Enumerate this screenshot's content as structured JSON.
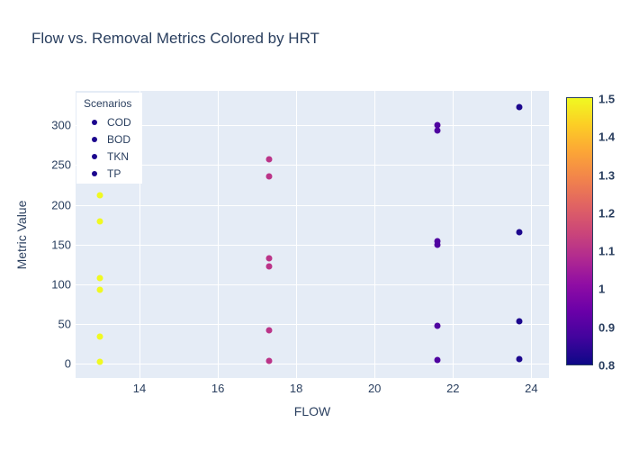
{
  "chart_data": {
    "type": "scatter",
    "title": "Flow vs. Removal Metrics Colored by HRT",
    "xlabel": "FLOW",
    "ylabel": "Metric Value",
    "x_ticks": [
      14,
      16,
      18,
      20,
      22,
      24
    ],
    "y_ticks": [
      0,
      50,
      100,
      150,
      200,
      250,
      300
    ],
    "x_range": [
      12.37,
      24.45
    ],
    "y_range": [
      -17.8,
      343.1
    ],
    "grid": true,
    "legend": {
      "title": "Scenarios",
      "position": "inside-top-left",
      "items": [
        "COD",
        "BOD",
        "TKN",
        "TP"
      ],
      "marker_color": "#1c078e"
    },
    "color_by": "HRT",
    "groups": [
      {
        "flow": 13.0,
        "hrt": 1.5,
        "marker_color": "#f0f921",
        "values": [
          212,
          179,
          108,
          93,
          34,
          3
        ]
      },
      {
        "flow": 17.3,
        "hrt": 1.13,
        "marker_color": "#bb3488",
        "values": [
          257,
          236,
          133,
          122,
          42,
          4
        ]
      },
      {
        "flow": 21.6,
        "hrt": 0.9,
        "marker_color": "#4f03a0",
        "values": [
          300,
          293,
          154,
          150,
          48,
          5
        ]
      },
      {
        "flow": 23.7,
        "hrt": 0.82,
        "marker_color": "#1c078e",
        "values": [
          323,
          166,
          53,
          6
        ]
      }
    ],
    "colorbar": {
      "min": 0.8,
      "max": 1.5,
      "ticks": [
        0.8,
        0.9,
        1,
        1.1,
        1.2,
        1.3,
        1.4,
        1.5
      ],
      "colormap": "plasma",
      "gradient_stops": [
        "#0d0887",
        "#41049d",
        "#6a00a8",
        "#8f0da4",
        "#b12a90",
        "#cc4778",
        "#e16462",
        "#f2844b",
        "#fca636",
        "#fcce25",
        "#f0f921"
      ]
    },
    "plot_bg_color": "#e5ecf6",
    "grid_color": "#ffffff",
    "text_color": "#2a3f5f"
  }
}
